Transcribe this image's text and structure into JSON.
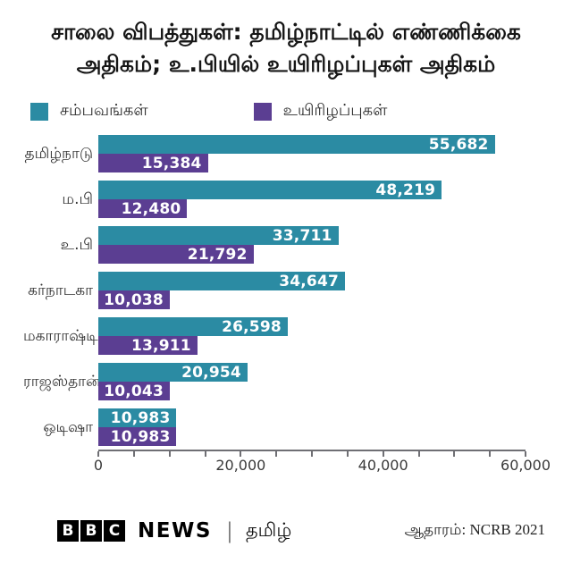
{
  "title": {
    "line1": "சாலை விபத்துகள்: தமிழ்நாட்டில் எண்ணிக்கை",
    "line2": "அதிகம்; உ.பியில் உயிரிழப்புகள் அதிகம்"
  },
  "colors": {
    "incidents": "#2b8ba3",
    "deaths": "#5b3e92",
    "axis": "#6f6f74",
    "bar_value_text": "#ffffff"
  },
  "legend": {
    "items": [
      {
        "key": "incidents",
        "label": "சம்பவங்கள்",
        "color": "#2b8ba3"
      },
      {
        "key": "deaths",
        "label": "உயிரிழப்புகள்",
        "color": "#5b3e92"
      }
    ]
  },
  "chart_data": {
    "type": "bar",
    "orientation": "horizontal",
    "title": "சாலை விபத்துகள்: தமிழ்நாட்டில் எண்ணிக்கை அதிகம்; உ.பியில் உயிரிழப்புகள் அதிகம்",
    "categories": [
      "தமிழ்நாடு",
      "ம.பி",
      "உ.பி",
      "கர்நாடகா",
      "மகாராஷ்டிரா",
      "ராஜஸ்தான்",
      "ஒடிஷா"
    ],
    "series": [
      {
        "key": "incidents",
        "name": "சம்பவங்கள்",
        "color": "#2b8ba3",
        "values": [
          55682,
          48219,
          33711,
          34647,
          26598,
          20954,
          10983
        ],
        "labels": [
          "55,682",
          "48,219",
          "33,711",
          "34,647",
          "26,598",
          "20,954",
          "10,983"
        ]
      },
      {
        "key": "deaths",
        "name": "உயிரிழப்புகள்",
        "color": "#5b3e92",
        "values": [
          15384,
          12480,
          21792,
          10038,
          13911,
          10043,
          10983
        ],
        "labels": [
          "15,384",
          "12,480",
          "21,792",
          "10,038",
          "13,911",
          "10,043",
          "10,983"
        ]
      }
    ],
    "xlim": [
      0,
      60000
    ],
    "x_major_ticks": [
      {
        "value": 0,
        "label": "0"
      },
      {
        "value": 20000,
        "label": "20,000"
      },
      {
        "value": 40000,
        "label": "40,000"
      },
      {
        "value": 60000,
        "label": "60,000"
      }
    ],
    "x_minor_tick_step": 5000,
    "grid": false,
    "legend_position": "top",
    "value_labels": "inside-end"
  },
  "footer": {
    "logo_blocks": [
      "B",
      "B",
      "C"
    ],
    "wordmark": "NEWS",
    "separator": "|",
    "brand": "தமிழ்",
    "source": "ஆதாரம்: NCRB 2021"
  }
}
